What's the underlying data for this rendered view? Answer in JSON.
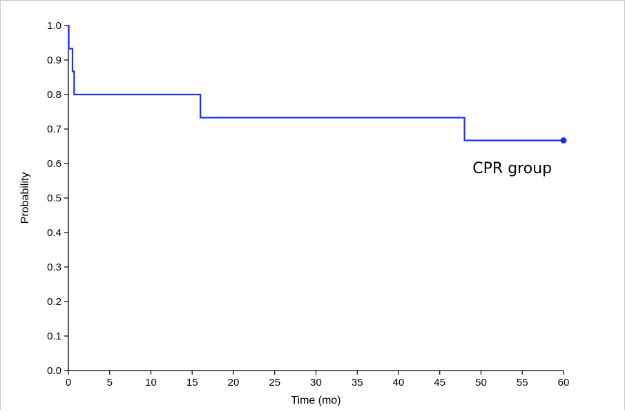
{
  "chart_data": {
    "type": "line",
    "xlabel": "Time (mo)",
    "ylabel": "Probability",
    "xlim": [
      0,
      60
    ],
    "ylim": [
      0,
      1.0
    ],
    "x_ticks": [
      0,
      5,
      10,
      15,
      20,
      25,
      30,
      35,
      40,
      45,
      50,
      55,
      60
    ],
    "x_tick_labels": [
      "0",
      "5",
      "10",
      "15",
      "20",
      "25",
      "30",
      "35",
      "40",
      "45",
      "50",
      "55",
      "60"
    ],
    "y_ticks": [
      0,
      0.1,
      0.2,
      0.3,
      0.4,
      0.5,
      0.6,
      0.7,
      0.8,
      0.9,
      1.0
    ],
    "y_tick_labels": [
      "0.0",
      "0.1",
      "0.2",
      "0.3",
      "0.4",
      "0.5",
      "0.6",
      "0.7",
      "0.8",
      "0.9",
      "1.0"
    ],
    "grid": false,
    "series": [
      {
        "step": "post",
        "color": "#1f2ee6",
        "x": [
          0,
          0.05,
          0.5,
          0.7,
          16,
          48,
          60
        ],
        "y": [
          1.0,
          0.933,
          0.867,
          0.8,
          0.733,
          0.667,
          0.667
        ],
        "censored": [
          {
            "x": 60,
            "y": 0.667
          }
        ]
      }
    ],
    "annotations": [
      {
        "text": "CPR group",
        "x": 54,
        "y": 0.58
      }
    ]
  }
}
